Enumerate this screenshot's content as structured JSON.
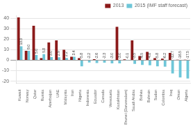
{
  "chart_data": {
    "type": "bar",
    "categories": [
      "Kuwait",
      "Norway",
      "Qatar",
      "Russia",
      "Azerbaijan",
      "UAE",
      "Malaysia",
      "Iran",
      "Nigeria",
      "Indonesia",
      "Ecuador",
      "Canada",
      "Venezuela",
      "Kazakhstan",
      "Brunei (Darussalam)",
      "Saudi Arabia",
      "Bolivia",
      "Bahrain",
      "Sudan",
      "Colombia",
      "Iraq",
      "Oman",
      "Algeria"
    ],
    "series": [
      {
        "name": "2013",
        "color": "#8B1A1A",
        "values": [
          41,
          9.0,
          33,
          2.0,
          17,
          19,
          10,
          3.4,
          2.0,
          0.3,
          1.0,
          0.3,
          0.3,
          32,
          0.8,
          19,
          4.0,
          8.0,
          2.0,
          1.5,
          7.0,
          0.5,
          0.5
        ]
      },
      {
        "name": "2015 (IMF staff forecast)",
        "color": "#6EC6D8",
        "values": [
          13.3,
          9.0,
          5.0,
          5.8,
          3.0,
          2.9,
          2.2,
          3.4,
          -5.8,
          -2.2,
          -2.6,
          -2.3,
          -3.0,
          -3.0,
          -0.1,
          -3.5,
          -4.5,
          -4.8,
          -5.8,
          -6.2,
          -12.7,
          -16.5,
          -17.5
        ],
        "data_labels": true,
        "value_labels": [
          "13.3",
          "9.0",
          "5.0",
          "5.8",
          "3.0",
          "2.9",
          "2.2",
          "3.4",
          "-5.8",
          "-2.2",
          "-2.6",
          "-2.3",
          "-3.0",
          "-3.0",
          "-0.1",
          "-3.5",
          "-4.5",
          "-4.8",
          "-5.8",
          "-6.2",
          "-12.7",
          "-16.5",
          "-17.5"
        ]
      }
    ],
    "ylim": [
      -22,
      43
    ],
    "yticks": [
      -20,
      -10,
      0,
      10,
      20,
      30,
      40
    ],
    "grid": true,
    "legend": "upper right"
  }
}
